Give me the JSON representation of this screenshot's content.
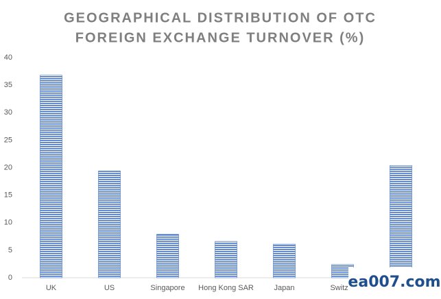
{
  "chart_data": {
    "type": "bar",
    "title": [
      "GEOGRAPHICAL DISTRIBUTION OF OTC",
      "FOREIGN EXCHANGE TURNOVER (%)"
    ],
    "categories": [
      "UK",
      "US",
      "Singapore",
      "Hong Kong SAR",
      "Japan",
      "Switzer",
      null
    ],
    "values": [
      36.8,
      19.4,
      7.9,
      6.6,
      6.1,
      2.4,
      20.4
    ],
    "color": "#4472c4",
    "ylim": [
      0,
      40
    ],
    "yticks": [
      0,
      5,
      10,
      15,
      20,
      25,
      30,
      35,
      40
    ],
    "grid": false
  },
  "watermark": "ea007.com"
}
